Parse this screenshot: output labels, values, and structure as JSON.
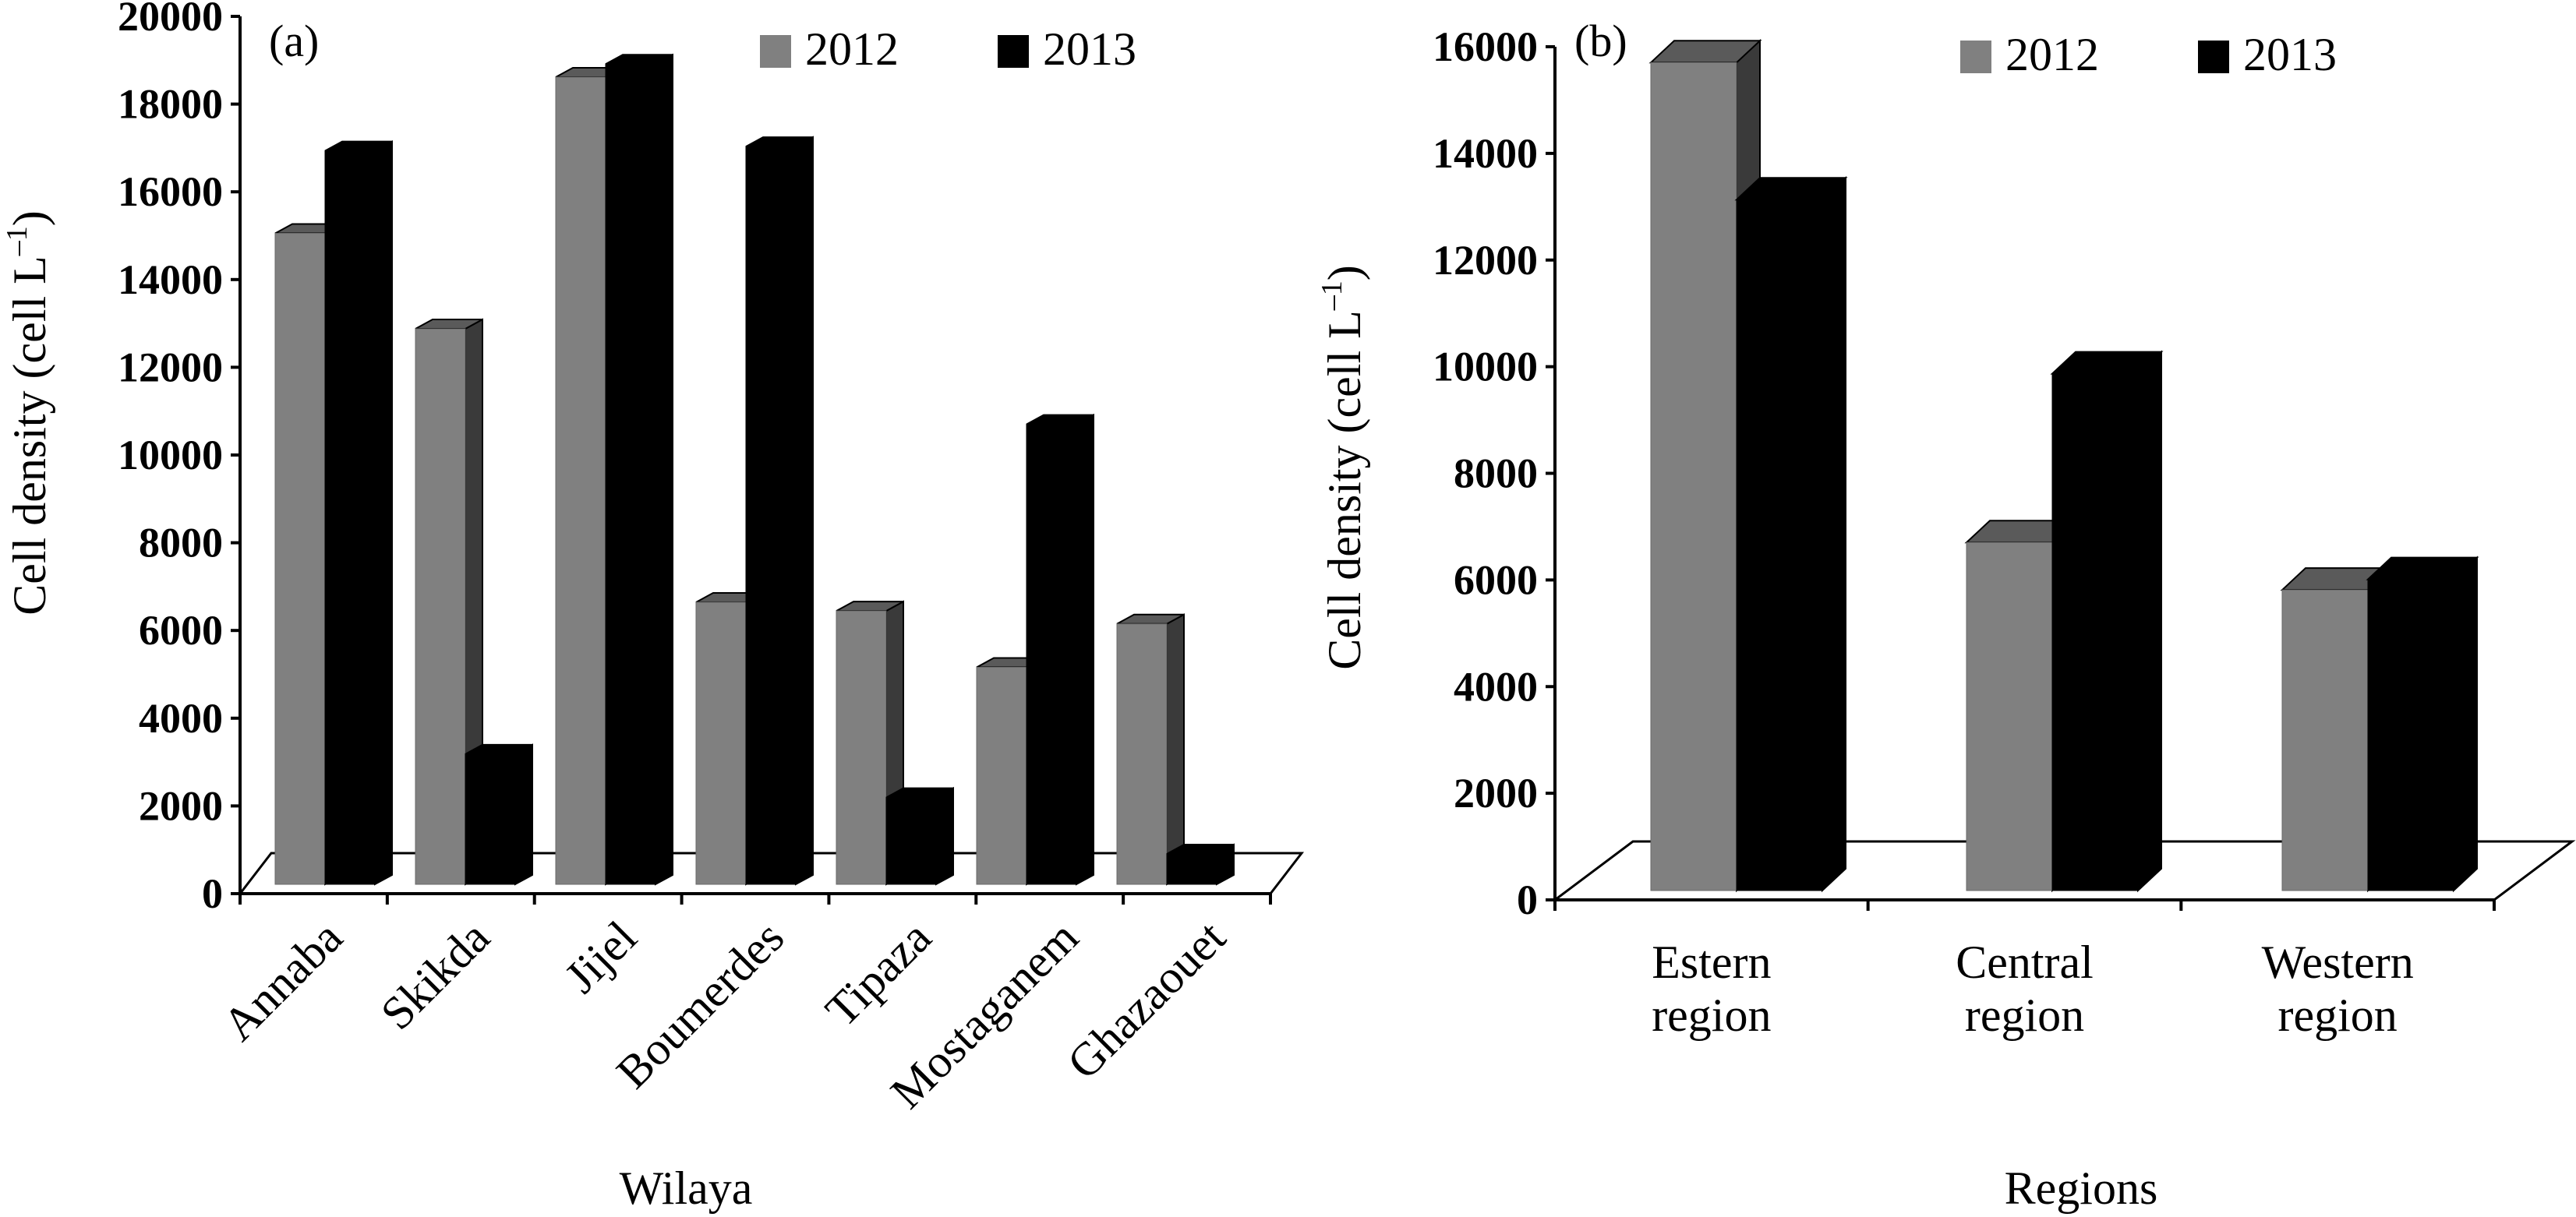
{
  "chart_data": [
    {
      "type": "bar",
      "panel_label": "(a)",
      "xlabel": "Wilaya",
      "ylabel": "Cell density (cell L",
      "ylabel_sup": "–1",
      "ylabel_end": ")",
      "ylim": [
        0,
        20000
      ],
      "yticks": [
        "0",
        "2000",
        "4000",
        "6000",
        "8000",
        "10000",
        "12000",
        "14000",
        "16000",
        "18000",
        "20000"
      ],
      "grid": false,
      "legend_position": "top-right",
      "style": "3d-clustered",
      "categories": [
        "Annaba",
        "Skikda",
        "Jijel",
        "Boumerdes",
        "Tipaza",
        "Mostaganem",
        "Ghazaouet"
      ],
      "series": [
        {
          "name": "2012",
          "color": "#808080",
          "values": [
            15000,
            12800,
            18600,
            6500,
            6300,
            5000,
            6000
          ]
        },
        {
          "name": "2013",
          "color": "#000000",
          "values": [
            16900,
            3000,
            18900,
            17000,
            2000,
            10600,
            700
          ]
        }
      ]
    },
    {
      "type": "bar",
      "panel_label": "(b)",
      "xlabel": "Regions",
      "ylabel": "Cell density (cell L",
      "ylabel_sup": "–1",
      "ylabel_end": ")",
      "ylim": [
        0,
        16000
      ],
      "yticks": [
        "0",
        "2000",
        "4000",
        "6000",
        "8000",
        "10000",
        "12000",
        "14000",
        "16000"
      ],
      "grid": false,
      "legend_position": "top-right",
      "style": "3d-clustered",
      "categories": [
        [
          "Estern",
          "region"
        ],
        [
          "Central",
          "region"
        ],
        [
          "Western",
          "region"
        ]
      ],
      "series": [
        {
          "name": "2012",
          "color": "#808080",
          "values": [
            15700,
            6600,
            5700
          ]
        },
        {
          "name": "2013",
          "color": "#000000",
          "values": [
            13100,
            9800,
            5900
          ]
        }
      ]
    }
  ]
}
